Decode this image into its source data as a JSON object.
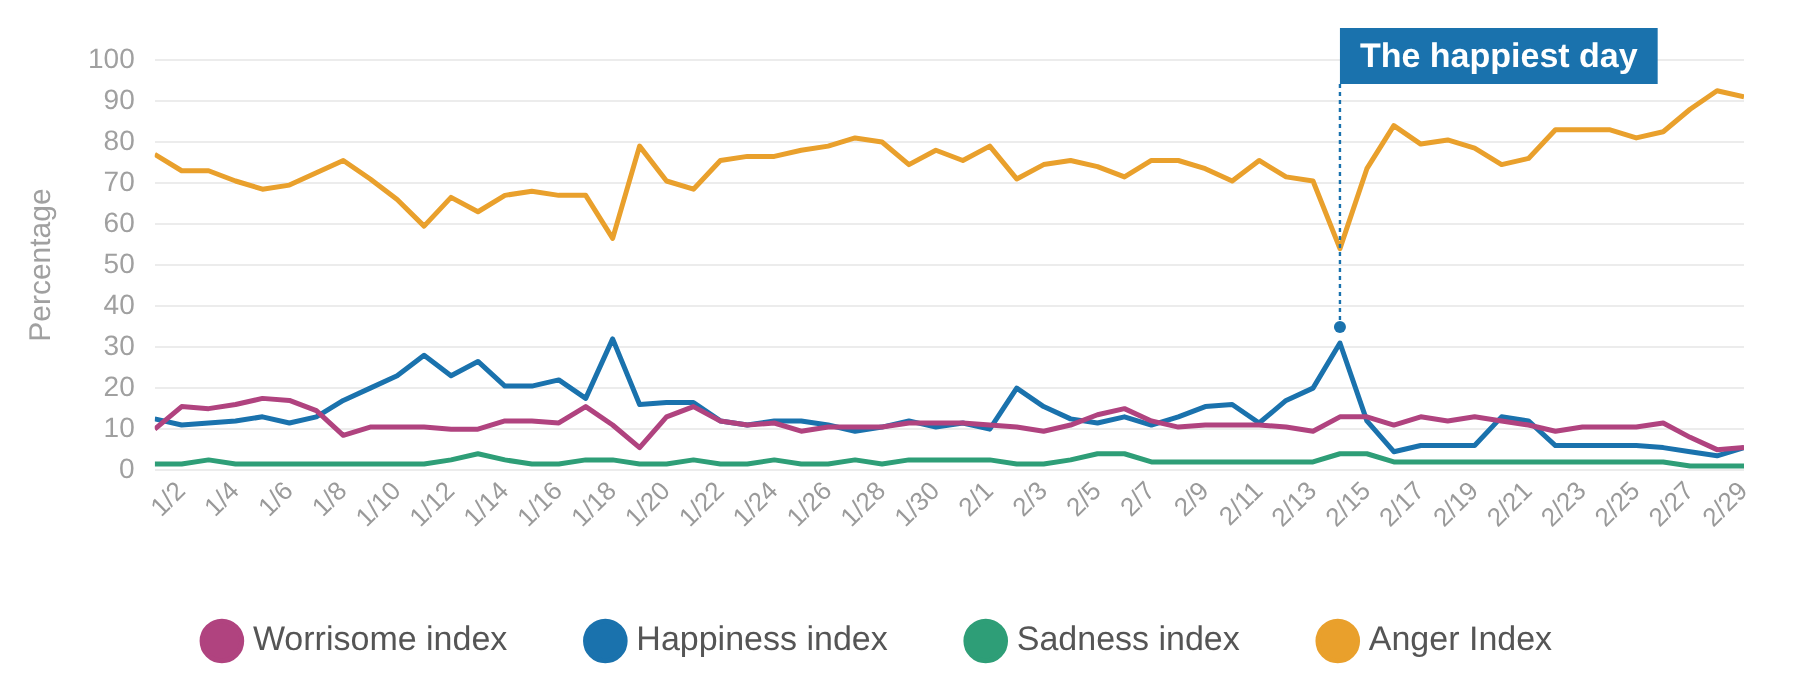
{
  "chart_data": {
    "type": "line",
    "ylabel": "Percentage",
    "x": [
      "--01-01",
      "--01-02",
      "--01-03",
      "--01-04",
      "--01-05",
      "--01-06",
      "--01-07",
      "--01-08",
      "--01-09",
      "--01-10",
      "--01-11",
      "--01-12",
      "--01-13",
      "--01-14",
      "--01-15",
      "--01-16",
      "--01-17",
      "--01-18",
      "--01-19",
      "--01-20",
      "--01-21",
      "--01-22",
      "--01-23",
      "--01-24",
      "--01-25",
      "--01-26",
      "--01-27",
      "--01-28",
      "--01-29",
      "--01-30",
      "--01-31",
      "--02-01",
      "--02-02",
      "--02-03",
      "--02-04",
      "--02-05",
      "--02-06",
      "--02-07",
      "--02-08",
      "--02-09",
      "--02-10",
      "--02-11",
      "--02-12",
      "--02-13",
      "--02-14",
      "--02-15",
      "--02-16",
      "--02-17",
      "--02-18",
      "--02-19",
      "--02-20",
      "--02-21",
      "--02-22",
      "--02-23",
      "--02-24",
      "--02-25",
      "--02-26",
      "--02-27",
      "--02-28",
      "--02-29"
    ],
    "series": [
      {
        "name": "Worrisome index",
        "color": "#b0437f",
        "values": [
          10,
          15.5,
          15,
          16,
          17.5,
          17,
          14.5,
          8.5,
          10.5,
          10.5,
          10.5,
          10,
          10,
          12,
          12,
          11.5,
          15.5,
          11,
          5.5,
          13,
          15.5,
          12,
          11,
          11.5,
          9.5,
          10.5,
          10.5,
          10.5,
          11.5,
          11.5,
          11.5,
          11,
          10.5,
          9.5,
          11,
          13.5,
          15,
          12,
          10.5,
          11,
          11,
          11,
          10.5,
          9.5,
          13,
          13,
          11,
          13,
          12,
          13,
          12,
          11,
          9.5,
          10.5,
          10.5,
          10.5,
          11.5,
          8,
          5,
          5.5
        ]
      },
      {
        "name": "Happiness index",
        "color": "#1a72ad",
        "values": [
          12.5,
          11,
          11.5,
          12,
          13,
          11.5,
          13,
          17,
          20,
          23,
          28,
          23,
          26.5,
          20.5,
          20.5,
          22,
          17.5,
          32,
          16,
          16.5,
          16.5,
          12,
          11,
          12,
          12,
          11,
          9.5,
          10.5,
          12,
          10.5,
          11.5,
          10,
          20,
          15.5,
          12.5,
          11.5,
          13,
          11,
          13,
          15.5,
          16,
          11.5,
          17,
          20,
          31,
          12,
          4.5,
          6,
          6,
          6,
          13,
          12,
          6,
          6,
          6,
          6,
          5.5,
          4.5,
          3.5,
          5.5
        ]
      },
      {
        "name": "Sadness index",
        "color": "#2e9e77",
        "values": [
          1.5,
          1.5,
          2.5,
          1.5,
          1.5,
          1.5,
          1.5,
          1.5,
          1.5,
          1.5,
          1.5,
          2.5,
          4,
          2.5,
          1.5,
          1.5,
          2.5,
          2.5,
          1.5,
          1.5,
          2.5,
          1.5,
          1.5,
          2.5,
          1.5,
          1.5,
          2.5,
          1.5,
          2.5,
          2.5,
          2.5,
          2.5,
          1.5,
          1.5,
          2.5,
          4,
          4,
          2,
          2,
          2,
          2,
          2,
          2,
          2,
          4,
          4,
          2,
          2,
          2,
          2,
          2,
          2,
          2,
          2,
          2,
          2,
          2,
          1,
          1,
          1
        ]
      },
      {
        "name": "Anger Index",
        "color": "#e9a02c",
        "values": [
          77,
          73,
          73,
          70.5,
          68.5,
          69.5,
          72.5,
          75.5,
          71,
          66,
          59.5,
          66.5,
          63,
          67,
          68,
          67,
          67,
          56.5,
          79,
          70.5,
          68.5,
          75.5,
          76.5,
          76.5,
          78,
          79,
          81,
          80,
          74.5,
          78,
          75.5,
          79,
          71,
          74.5,
          75.5,
          74,
          71.5,
          75.5,
          75.5,
          73.5,
          70.5,
          75.5,
          71.5,
          70.5,
          54,
          73.5,
          84,
          79.5,
          80.5,
          78.5,
          74.5,
          76,
          83,
          83,
          83,
          81,
          82.5,
          88,
          92.5,
          91
        ]
      }
    ],
    "xlim": [
      "--01-01",
      "--02-29"
    ],
    "xticks": [
      {
        "value": "--01-02",
        "label": "1/2"
      },
      {
        "value": "--01-04",
        "label": "1/4"
      },
      {
        "value": "--01-06",
        "label": "1/6"
      },
      {
        "value": "--01-08",
        "label": "1/8"
      },
      {
        "value": "--01-10",
        "label": "1/10"
      },
      {
        "value": "--01-12",
        "label": "1/12"
      },
      {
        "value": "--01-14",
        "label": "1/14"
      },
      {
        "value": "--01-16",
        "label": "1/16"
      },
      {
        "value": "--01-18",
        "label": "1/18"
      },
      {
        "value": "--01-20",
        "label": "1/20"
      },
      {
        "value": "--01-22",
        "label": "1/22"
      },
      {
        "value": "--01-24",
        "label": "1/24"
      },
      {
        "value": "--01-26",
        "label": "1/26"
      },
      {
        "value": "--01-28",
        "label": "1/28"
      },
      {
        "value": "--01-30",
        "label": "1/30"
      },
      {
        "value": "--02-01",
        "label": "2/1"
      },
      {
        "value": "--02-03",
        "label": "2/3"
      },
      {
        "value": "--02-05",
        "label": "2/5"
      },
      {
        "value": "--02-07",
        "label": "2/7"
      },
      {
        "value": "--02-09",
        "label": "2/9"
      },
      {
        "value": "--02-11",
        "label": "2/11"
      },
      {
        "value": "--02-13",
        "label": "2/13"
      },
      {
        "value": "--02-15",
        "label": "2/15"
      },
      {
        "value": "--02-17",
        "label": "2/17"
      },
      {
        "value": "--02-19",
        "label": "2/19"
      },
      {
        "value": "--02-21",
        "label": "2/21"
      },
      {
        "value": "--02-23",
        "label": "2/23"
      },
      {
        "value": "--02-25",
        "label": "2/25"
      },
      {
        "value": "--02-27",
        "label": "2/27"
      },
      {
        "value": "--02-29",
        "label": "2/29"
      }
    ],
    "ylim": [
      0,
      100
    ],
    "yticks": [
      0,
      10,
      20,
      30,
      40,
      50,
      60,
      70,
      80,
      90,
      100
    ],
    "grid": "y",
    "legend": "bottom",
    "marker": "none",
    "line_style": "solid",
    "annotations": [
      {
        "text": "The happiest day",
        "x": "--02-14",
        "y": 31
      }
    ]
  }
}
